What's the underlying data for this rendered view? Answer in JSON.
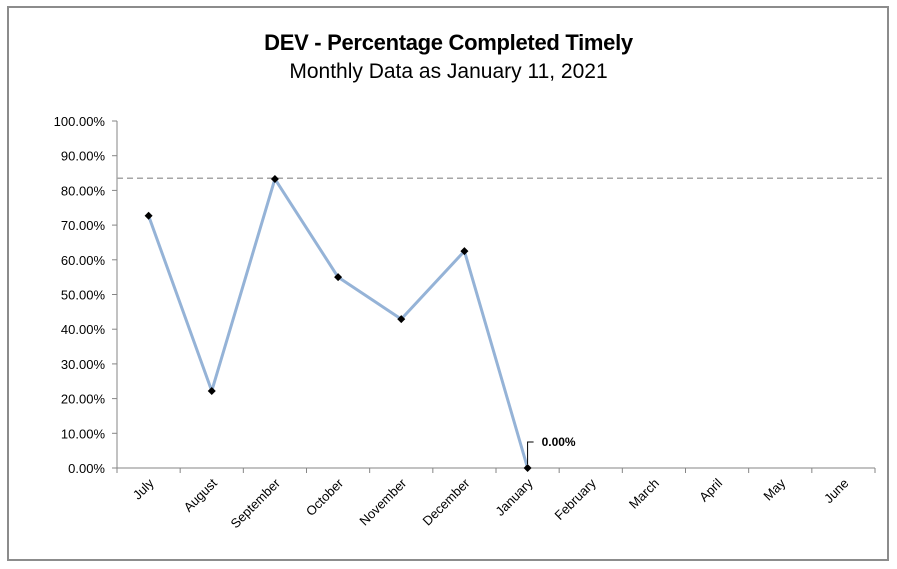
{
  "chart_data": {
    "type": "line",
    "title": "DEV - Percentage Completed Timely",
    "subtitle": "Monthly Data as January 11, 2021",
    "categories": [
      "July",
      "August",
      "September",
      "October",
      "November",
      "December",
      "January",
      "February",
      "March",
      "April",
      "May",
      "June"
    ],
    "series": [
      {
        "values": [
          72.7,
          22.2,
          83.3,
          55.0,
          42.9,
          62.5,
          0.0,
          null,
          null,
          null,
          null,
          null
        ]
      }
    ],
    "target_line": 83.5,
    "y_ticks": [
      "0.00%",
      "10.00%",
      "20.00%",
      "30.00%",
      "40.00%",
      "50.00%",
      "60.00%",
      "70.00%",
      "80.00%",
      "90.00%",
      "100.00%"
    ],
    "ylim": [
      0,
      100
    ],
    "data_labels": [
      {
        "category": "January",
        "text": "0.00%"
      }
    ],
    "grid": false,
    "colors": {
      "line": "#95b3d7",
      "marker": "#000000",
      "target": "#a6a6a6",
      "frame": "#8c8c8c"
    }
  }
}
